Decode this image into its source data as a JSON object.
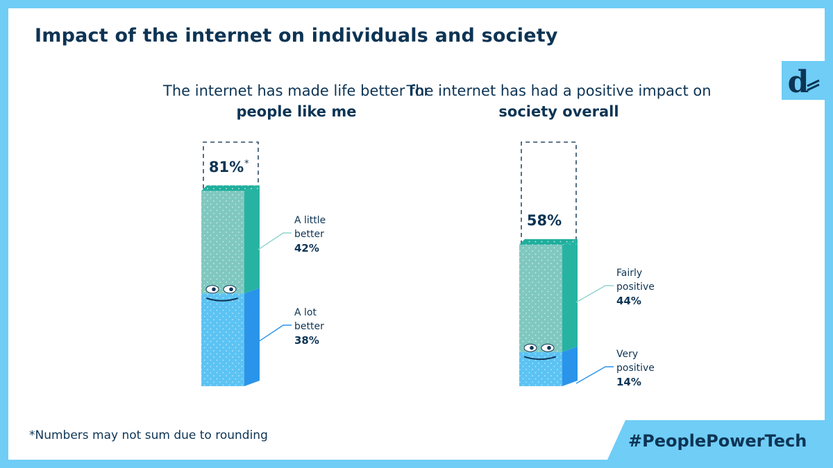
{
  "title": "Impact of the internet on individuals and society",
  "footnote": "*Numbers may not sum due to rounding",
  "hashtag": "#PeoplePowerTech",
  "logo_icon": "d-letter-logo",
  "colors": {
    "navy": "#0d3454",
    "frame_blue": "#6fcdf6",
    "teal_front": "#80c8bf",
    "teal_side": "#27b3a2",
    "teal_top": "#1fae9c",
    "blue_front": "#5cc3f3",
    "blue_side": "#2a94ea"
  },
  "chart_data": [
    {
      "type": "bar",
      "subtitle_pre": "The internet has made life better for ",
      "subtitle_bold": "people like me",
      "total_label": "81%",
      "total_mark": "*",
      "total": 81,
      "segments": [
        {
          "line1": "A lot",
          "line2": "better",
          "value": 38,
          "value_label": "38%"
        },
        {
          "line1": "A little",
          "line2": "better",
          "value": 42,
          "value_label": "42%"
        }
      ]
    },
    {
      "type": "bar",
      "subtitle_pre": "The internet has had a positive impact on ",
      "subtitle_bold": "society overall",
      "total_label": "58%",
      "total_mark": "",
      "total": 58,
      "segments": [
        {
          "line1": "Very",
          "line2": "positive",
          "value": 14,
          "value_label": "14%"
        },
        {
          "line1": "Fairly",
          "line2": "positive",
          "value": 44,
          "value_label": "44%"
        }
      ]
    }
  ]
}
